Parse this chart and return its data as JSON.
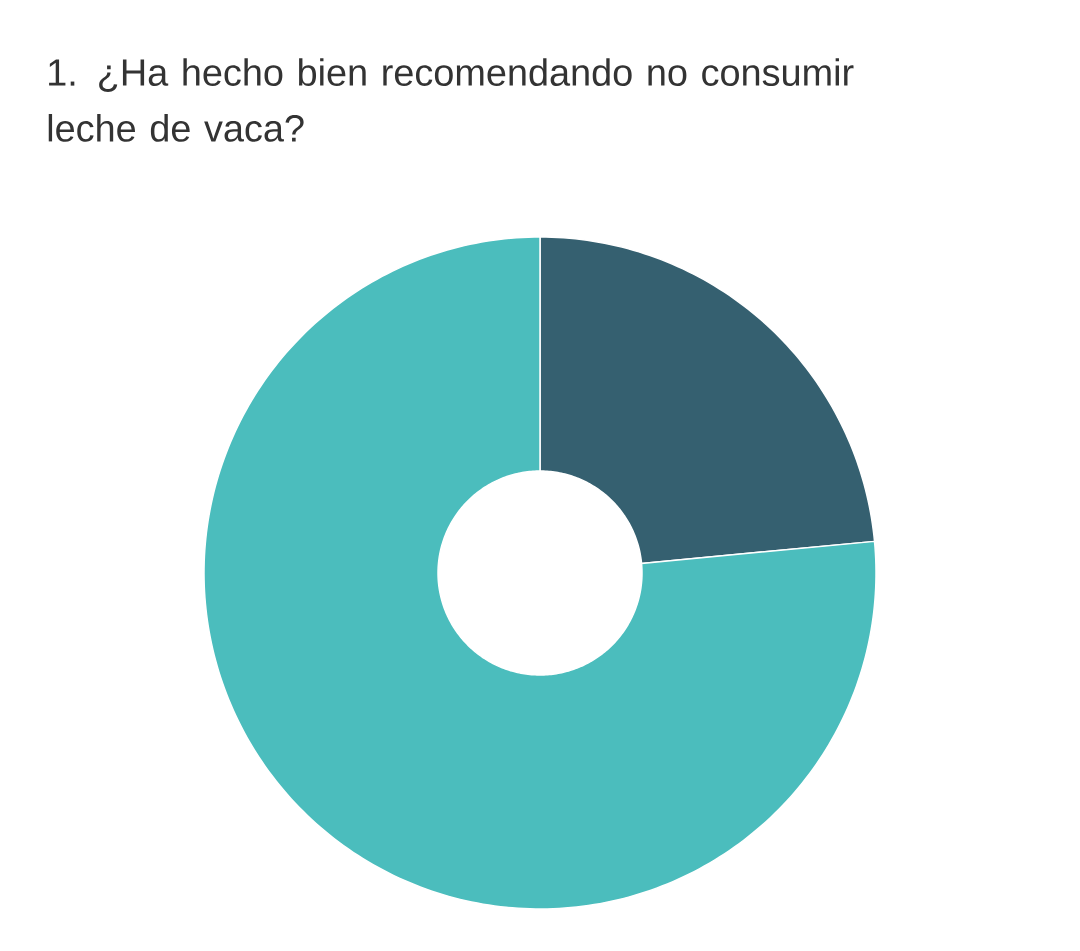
{
  "chart_data": {
    "type": "donut",
    "title": "1. ¿Ha hecho bien recomendando no consumir leche de vaca?",
    "categories": [
      null,
      null
    ],
    "values": [
      23.5,
      76.5
    ],
    "colors": [
      "#356070",
      "#4bbdbd"
    ]
  }
}
